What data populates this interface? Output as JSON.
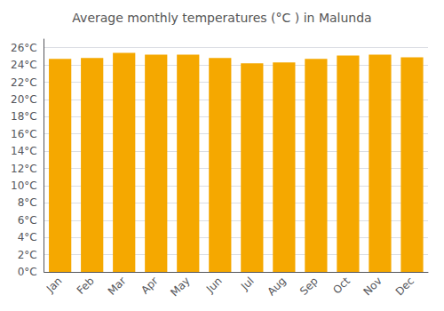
{
  "chart_data": {
    "type": "bar",
    "title": "Average monthly temperatures (°C ) in Malunda",
    "categories": [
      "Jan",
      "Feb",
      "Mar",
      "Apr",
      "May",
      "Jun",
      "Jul",
      "Aug",
      "Sep",
      "Oct",
      "Nov",
      "Dec"
    ],
    "values": [
      24.7,
      24.8,
      25.4,
      25.2,
      25.2,
      24.8,
      24.2,
      24.3,
      24.7,
      25.1,
      25.2,
      24.9
    ],
    "color": "#F5A800",
    "ylim": [
      0,
      27
    ],
    "yticks": [
      {
        "value": 0,
        "label": "0°C"
      },
      {
        "value": 2,
        "label": "2°C"
      },
      {
        "value": 4,
        "label": "4°C"
      },
      {
        "value": 6,
        "label": "6°C"
      },
      {
        "value": 8,
        "label": "8°C"
      },
      {
        "value": 10,
        "label": "10°C"
      },
      {
        "value": 12,
        "label": "12°C"
      },
      {
        "value": 14,
        "label": "14°C"
      },
      {
        "value": 16,
        "label": "16°C"
      },
      {
        "value": 18,
        "label": "18°C"
      },
      {
        "value": 20,
        "label": "20°C"
      },
      {
        "value": 22,
        "label": "22°C"
      },
      {
        "value": 24,
        "label": "24°C"
      },
      {
        "value": 26,
        "label": "26°C"
      }
    ],
    "grid": true
  }
}
